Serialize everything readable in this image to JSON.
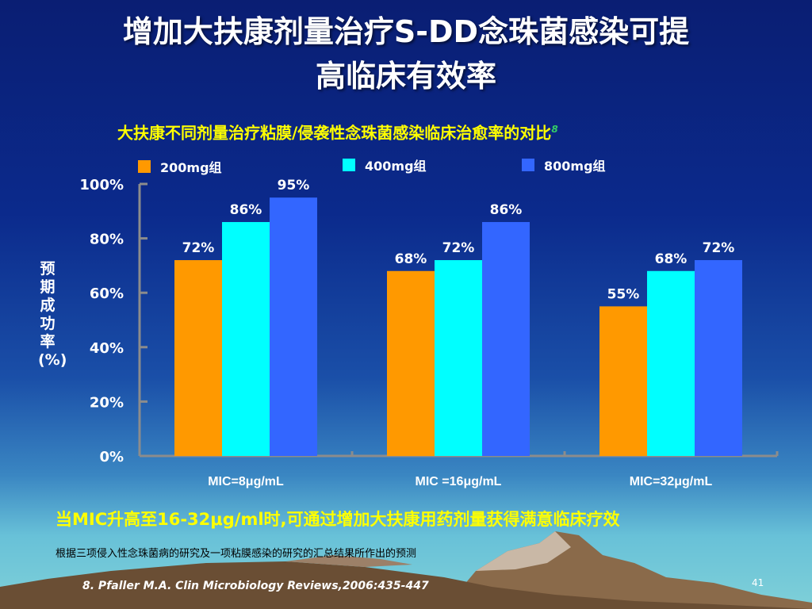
{
  "slide": {
    "title_line1": "增加大扶康剂量治疗S-DD念珠菌感染可提",
    "title_line2": "高临床有效率",
    "conclusion": "当MIC升高至16-32μg/ml时,可通过增加大扶康用药剂量获得满意临床疗效",
    "note": "根据三项侵入性念珠菌病的研究及一项粘膜感染的研究的汇总结果所作出的预测",
    "reference": "8. Pfaller M.A. Clin Microbiology Reviews,2006:435-447",
    "page_number": "41"
  },
  "colors": {
    "accent_title": "#ffffff",
    "accent_yellow": "#ffff00"
  },
  "chart_data": {
    "type": "bar",
    "title": "大扶康不同剂量治疗粘膜/侵袭性念珠菌感染临床治愈率的对比",
    "title_ref": "8",
    "ylabel": "预期成功率(%)",
    "xlabel": "",
    "ylim": [
      0,
      100
    ],
    "yticks": [
      0,
      20,
      40,
      60,
      80,
      100
    ],
    "ytick_labels": [
      "0%",
      "20%",
      "40%",
      "60%",
      "80%",
      "100%"
    ],
    "categories": [
      "MIC=8μg/mL",
      "MIC =16μg/mL",
      "MIC=32μg/mL"
    ],
    "series": [
      {
        "name": "200mg组",
        "color": "#ff9900",
        "values": [
          72,
          68,
          55
        ],
        "labels": [
          "72%",
          "68%",
          "55%"
        ]
      },
      {
        "name": "400mg组",
        "color": "#00ffff",
        "values": [
          86,
          72,
          68
        ],
        "labels": [
          "86%",
          "72%",
          "68%"
        ]
      },
      {
        "name": "800mg组",
        "color": "#3366ff",
        "values": [
          95,
          86,
          72
        ],
        "labels": [
          "95%",
          "86%",
          "72%"
        ]
      }
    ],
    "legend": "top",
    "grid": false
  }
}
